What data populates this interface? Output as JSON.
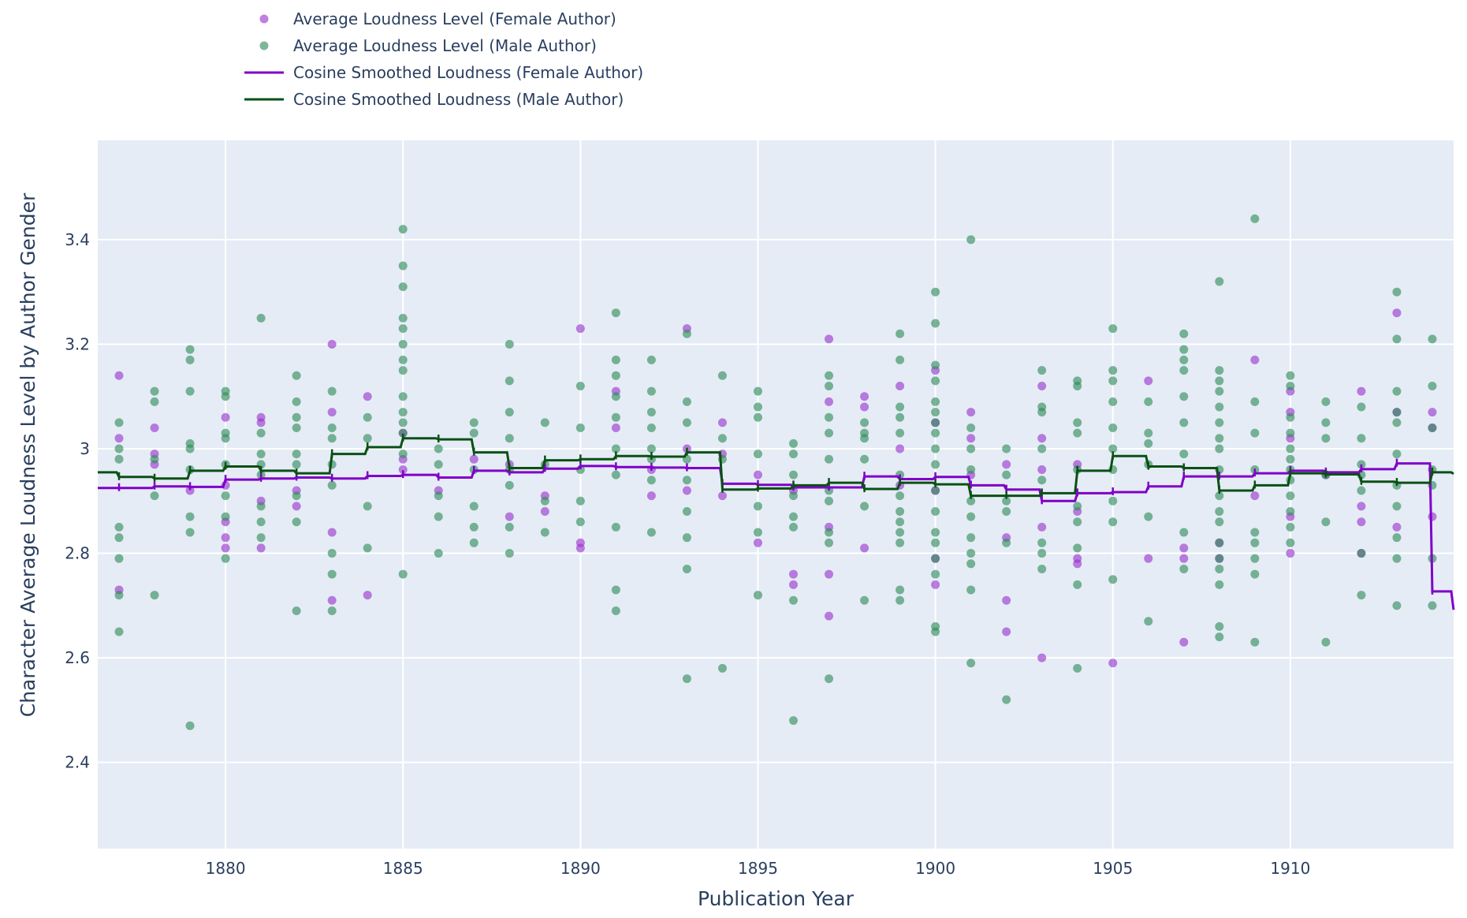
{
  "chart_data": {
    "type": "scatter",
    "xlabel": "Publication Year",
    "ylabel": "Character Average Loudness Level by Author Gender",
    "xlim": [
      1876.4,
      1914.6
    ],
    "ylim": [
      2.235,
      3.59
    ],
    "x_ticks": [
      1880,
      1885,
      1890,
      1895,
      1900,
      1905,
      1910
    ],
    "x_tick_labels": [
      "1880",
      "1885",
      "1890",
      "1895",
      "1900",
      "1905",
      "1910"
    ],
    "y_ticks": [
      2.4,
      2.6,
      2.8,
      3.0,
      3.2,
      3.4
    ],
    "y_tick_labels": [
      "2.4",
      "2.6",
      "2.8",
      "3",
      "3.2",
      "3.4"
    ],
    "grid": true,
    "legend_position": "top-left",
    "colors": {
      "plot_bg": "#e5ecf6",
      "grid": "#ffffff",
      "female_marker": "#9932cc",
      "male_marker": "#2e8b57",
      "female_line": "#8000c8",
      "male_line": "#0b5014"
    },
    "series": [
      {
        "name": "Average Loudness Level (Female Author)",
        "mode": "markers",
        "color": "#9932cc",
        "x": [
          1877,
          1877,
          1877,
          1878,
          1878,
          1878,
          1879,
          1880,
          1880,
          1880,
          1880,
          1880,
          1881,
          1881,
          1881,
          1881,
          1882,
          1882,
          1883,
          1883,
          1883,
          1883,
          1884,
          1884,
          1885,
          1885,
          1885,
          1886,
          1887,
          1888,
          1888,
          1889,
          1889,
          1890,
          1890,
          1890,
          1891,
          1891,
          1892,
          1892,
          1893,
          1893,
          1893,
          1894,
          1894,
          1894,
          1895,
          1895,
          1896,
          1896,
          1896,
          1897,
          1897,
          1897,
          1897,
          1897,
          1898,
          1898,
          1898,
          1899,
          1899,
          1899,
          1900,
          1900,
          1900,
          1900,
          1900,
          1901,
          1901,
          1901,
          1902,
          1902,
          1902,
          1902,
          1903,
          1903,
          1903,
          1903,
          1903,
          1904,
          1904,
          1904,
          1904,
          1905,
          1906,
          1906,
          1907,
          1907,
          1907,
          1908,
          1908,
          1909,
          1909,
          1910,
          1910,
          1910,
          1910,
          1910,
          1911,
          1912,
          1912,
          1912,
          1912,
          1913,
          1913,
          1913,
          1914,
          1914,
          1914
        ],
        "y": [
          3.14,
          3.02,
          2.73,
          3.04,
          2.97,
          2.99,
          2.92,
          3.06,
          2.93,
          2.86,
          2.83,
          2.81,
          3.06,
          3.05,
          2.9,
          2.81,
          2.92,
          2.89,
          3.2,
          3.07,
          2.84,
          2.71,
          3.1,
          2.72,
          3.03,
          2.98,
          2.96,
          2.92,
          2.98,
          2.97,
          2.87,
          2.91,
          2.88,
          3.23,
          2.82,
          2.81,
          3.11,
          3.04,
          2.96,
          2.91,
          3.23,
          3.0,
          2.92,
          3.05,
          2.99,
          2.91,
          2.95,
          2.82,
          2.92,
          2.76,
          2.74,
          3.21,
          3.09,
          2.85,
          2.76,
          2.68,
          3.1,
          3.08,
          2.81,
          3.12,
          3.0,
          2.93,
          3.15,
          3.05,
          2.92,
          2.79,
          2.74,
          3.07,
          3.02,
          2.95,
          2.97,
          2.83,
          2.71,
          2.65,
          3.12,
          3.02,
          2.96,
          2.85,
          2.6,
          2.97,
          2.88,
          2.79,
          2.78,
          2.59,
          3.13,
          2.79,
          2.81,
          2.79,
          2.63,
          2.82,
          2.79,
          3.17,
          2.91,
          3.11,
          3.07,
          3.02,
          2.87,
          2.8,
          2.95,
          3.11,
          2.89,
          2.86,
          2.8,
          3.26,
          3.07,
          2.85,
          3.07,
          3.04,
          2.87
        ]
      },
      {
        "name": "Average Loudness Level (Male Author)",
        "mode": "markers",
        "color": "#2e8b57",
        "x": [
          1877,
          1877,
          1877,
          1877,
          1877,
          1877,
          1877,
          1877,
          1878,
          1878,
          1878,
          1878,
          1878,
          1879,
          1879,
          1879,
          1879,
          1879,
          1879,
          1879,
          1879,
          1879,
          1880,
          1880,
          1880,
          1880,
          1880,
          1880,
          1880,
          1880,
          1881,
          1881,
          1881,
          1881,
          1881,
          1881,
          1881,
          1881,
          1882,
          1882,
          1882,
          1882,
          1882,
          1882,
          1882,
          1882,
          1882,
          1883,
          1883,
          1883,
          1883,
          1883,
          1883,
          1883,
          1883,
          1884,
          1884,
          1884,
          1884,
          1885,
          1885,
          1885,
          1885,
          1885,
          1885,
          1885,
          1885,
          1885,
          1885,
          1885,
          1885,
          1885,
          1885,
          1886,
          1886,
          1886,
          1886,
          1886,
          1887,
          1887,
          1887,
          1887,
          1887,
          1887,
          1888,
          1888,
          1888,
          1888,
          1888,
          1888,
          1888,
          1888,
          1889,
          1889,
          1889,
          1889,
          1890,
          1890,
          1890,
          1890,
          1890,
          1891,
          1891,
          1891,
          1891,
          1891,
          1891,
          1891,
          1891,
          1891,
          1891,
          1892,
          1892,
          1892,
          1892,
          1892,
          1892,
          1892,
          1892,
          1893,
          1893,
          1893,
          1893,
          1893,
          1893,
          1893,
          1893,
          1893,
          1894,
          1894,
          1894,
          1894,
          1895,
          1895,
          1895,
          1895,
          1895,
          1895,
          1895,
          1896,
          1896,
          1896,
          1896,
          1896,
          1896,
          1896,
          1896,
          1897,
          1897,
          1897,
          1897,
          1897,
          1897,
          1897,
          1897,
          1897,
          1897,
          1898,
          1898,
          1898,
          1898,
          1898,
          1898,
          1899,
          1899,
          1899,
          1899,
          1899,
          1899,
          1899,
          1899,
          1899,
          1899,
          1899,
          1899,
          1899,
          1900,
          1900,
          1900,
          1900,
          1900,
          1900,
          1900,
          1900,
          1900,
          1900,
          1900,
          1900,
          1900,
          1900,
          1900,
          1900,
          1900,
          1900,
          1901,
          1901,
          1901,
          1901,
          1901,
          1901,
          1901,
          1901,
          1901,
          1901,
          1901,
          1902,
          1902,
          1902,
          1902,
          1902,
          1902,
          1903,
          1903,
          1903,
          1903,
          1903,
          1903,
          1903,
          1903,
          1904,
          1904,
          1904,
          1904,
          1904,
          1904,
          1904,
          1904,
          1904,
          1904,
          1905,
          1905,
          1905,
          1905,
          1905,
          1905,
          1905,
          1905,
          1905,
          1905,
          1906,
          1906,
          1906,
          1906,
          1906,
          1906,
          1907,
          1907,
          1907,
          1907,
          1907,
          1907,
          1907,
          1907,
          1907,
          1908,
          1908,
          1908,
          1908,
          1908,
          1908,
          1908,
          1908,
          1908,
          1908,
          1908,
          1908,
          1908,
          1908,
          1908,
          1908,
          1908,
          1908,
          1909,
          1909,
          1909,
          1909,
          1909,
          1909,
          1909,
          1909,
          1909,
          1910,
          1910,
          1910,
          1910,
          1910,
          1910,
          1910,
          1910,
          1910,
          1910,
          1910,
          1910,
          1911,
          1911,
          1911,
          1911,
          1911,
          1911,
          1912,
          1912,
          1912,
          1912,
          1912,
          1912,
          1912,
          1913,
          1913,
          1913,
          1913,
          1913,
          1913,
          1913,
          1913,
          1913,
          1913,
          1913,
          1914,
          1914,
          1914,
          1914,
          1914,
          1914,
          1914
        ],
        "y": [
          3.05,
          3.0,
          2.98,
          2.85,
          2.83,
          2.79,
          2.72,
          2.65,
          3.11,
          3.09,
          2.98,
          2.91,
          2.72,
          3.19,
          3.17,
          3.11,
          3.01,
          3.0,
          2.96,
          2.87,
          2.84,
          2.47,
          3.11,
          3.1,
          3.03,
          3.02,
          2.97,
          2.91,
          2.87,
          2.79,
          3.25,
          3.03,
          2.99,
          2.97,
          2.95,
          2.89,
          2.86,
          2.83,
          3.14,
          3.09,
          3.06,
          3.04,
          2.99,
          2.97,
          2.91,
          2.86,
          2.69,
          3.11,
          3.04,
          3.02,
          2.97,
          2.93,
          2.8,
          2.76,
          2.69,
          3.06,
          3.02,
          2.89,
          2.81,
          3.42,
          3.35,
          3.31,
          3.25,
          3.23,
          3.2,
          3.17,
          3.15,
          3.1,
          3.07,
          3.05,
          3.03,
          2.99,
          2.76,
          3.0,
          2.97,
          2.91,
          2.87,
          2.8,
          3.05,
          3.03,
          2.96,
          2.89,
          2.85,
          2.82,
          3.2,
          3.13,
          3.07,
          3.02,
          2.96,
          2.93,
          2.85,
          2.8,
          3.05,
          2.97,
          2.9,
          2.84,
          3.12,
          3.04,
          2.96,
          2.9,
          2.86,
          3.26,
          3.17,
          3.14,
          3.1,
          3.06,
          3.0,
          2.95,
          2.85,
          2.73,
          2.69,
          3.17,
          3.11,
          3.07,
          3.04,
          3.0,
          2.98,
          2.94,
          2.84,
          3.22,
          3.09,
          3.05,
          2.98,
          2.94,
          2.88,
          2.83,
          2.77,
          2.56,
          3.14,
          3.02,
          2.98,
          2.58,
          3.11,
          3.08,
          3.06,
          2.99,
          2.89,
          2.84,
          2.72,
          3.01,
          2.99,
          2.95,
          2.91,
          2.87,
          2.85,
          2.71,
          2.48,
          3.14,
          3.12,
          3.06,
          3.03,
          2.98,
          2.92,
          2.9,
          2.84,
          2.82,
          2.56,
          3.05,
          3.03,
          3.02,
          2.98,
          2.89,
          2.71,
          3.22,
          3.17,
          3.08,
          3.06,
          3.03,
          2.95,
          2.91,
          2.88,
          2.86,
          2.84,
          2.82,
          2.73,
          2.71,
          3.3,
          3.24,
          3.16,
          3.13,
          3.09,
          3.07,
          3.05,
          3.03,
          3.0,
          2.97,
          2.92,
          2.88,
          2.84,
          2.82,
          2.79,
          2.76,
          2.66,
          2.65,
          3.4,
          3.04,
          3.0,
          2.96,
          2.9,
          2.87,
          2.83,
          2.8,
          2.78,
          2.73,
          2.59,
          3.0,
          2.95,
          2.9,
          2.88,
          2.82,
          2.52,
          3.15,
          3.08,
          3.07,
          3.0,
          2.94,
          2.82,
          2.8,
          2.77,
          3.13,
          3.12,
          3.05,
          3.03,
          2.96,
          2.89,
          2.86,
          2.81,
          2.74,
          2.58,
          3.23,
          3.15,
          3.13,
          3.09,
          3.04,
          3.0,
          2.96,
          2.9,
          2.86,
          2.75,
          3.09,
          3.03,
          3.01,
          2.97,
          2.87,
          2.67,
          3.22,
          3.19,
          3.17,
          3.15,
          3.1,
          3.05,
          2.99,
          2.84,
          2.77,
          3.32,
          3.15,
          3.13,
          3.11,
          3.08,
          3.05,
          3.02,
          3.0,
          2.96,
          2.91,
          2.88,
          2.86,
          2.82,
          2.79,
          2.77,
          2.74,
          2.66,
          2.64,
          3.44,
          3.09,
          3.03,
          2.96,
          2.84,
          2.82,
          2.79,
          2.76,
          2.63,
          3.14,
          3.12,
          3.06,
          3.03,
          3.0,
          2.98,
          2.96,
          2.94,
          2.91,
          2.88,
          2.85,
          2.82,
          3.09,
          3.05,
          3.02,
          2.95,
          2.86,
          2.63,
          3.08,
          3.02,
          2.97,
          2.95,
          2.92,
          2.8,
          2.72,
          3.3,
          3.21,
          3.11,
          3.07,
          3.05,
          2.99,
          2.93,
          2.89,
          2.83,
          2.79,
          2.7,
          3.21,
          3.12,
          3.04,
          2.96,
          2.93,
          2.79,
          2.7
        ]
      },
      {
        "name": "Cosine Smoothed Loudness (Female Author)",
        "mode": "lines",
        "color": "#8000c8",
        "x": [
          1876.4,
          1877,
          1878,
          1879,
          1880,
          1881,
          1882,
          1883,
          1884,
          1885,
          1886,
          1887,
          1888,
          1889,
          1890,
          1891,
          1892,
          1893,
          1894,
          1895,
          1896,
          1897,
          1898,
          1899,
          1900,
          1901,
          1902,
          1903,
          1904,
          1905,
          1906,
          1907,
          1908,
          1909,
          1910,
          1911,
          1912,
          1913,
          1914,
          1914.6
        ],
        "y": [
          2.925,
          2.925,
          2.928,
          2.927,
          2.941,
          2.943,
          2.945,
          2.943,
          2.948,
          2.95,
          2.945,
          2.958,
          2.955,
          2.962,
          2.967,
          2.965,
          2.964,
          2.963,
          2.933,
          2.931,
          2.926,
          2.926,
          2.947,
          2.942,
          2.946,
          2.93,
          2.922,
          2.9,
          2.915,
          2.917,
          2.928,
          2.947,
          2.947,
          2.953,
          2.958,
          2.955,
          2.961,
          2.972,
          2.727,
          2.692
        ]
      },
      {
        "name": "Cosine Smoothed Loudness (Male Author)",
        "mode": "lines",
        "color": "#0b5014",
        "x": [
          1876.4,
          1877,
          1878,
          1879,
          1880,
          1881,
          1882,
          1883,
          1884,
          1885,
          1886,
          1887,
          1888,
          1889,
          1890,
          1891,
          1892,
          1893,
          1894,
          1895,
          1896,
          1897,
          1898,
          1899,
          1900,
          1901,
          1902,
          1903,
          1904,
          1905,
          1906,
          1907,
          1908,
          1909,
          1910,
          1911,
          1912,
          1913,
          1914,
          1914.6
        ],
        "y": [
          2.955,
          2.946,
          2.943,
          2.958,
          2.966,
          2.958,
          2.953,
          2.99,
          3.003,
          3.02,
          3.018,
          2.993,
          2.963,
          2.978,
          2.98,
          2.986,
          2.985,
          2.993,
          2.922,
          2.924,
          2.93,
          2.935,
          2.923,
          2.935,
          2.932,
          2.91,
          2.91,
          2.915,
          2.958,
          2.986,
          2.966,
          2.963,
          2.92,
          2.93,
          2.953,
          2.951,
          2.937,
          2.935,
          2.955,
          2.952
        ]
      }
    ]
  }
}
